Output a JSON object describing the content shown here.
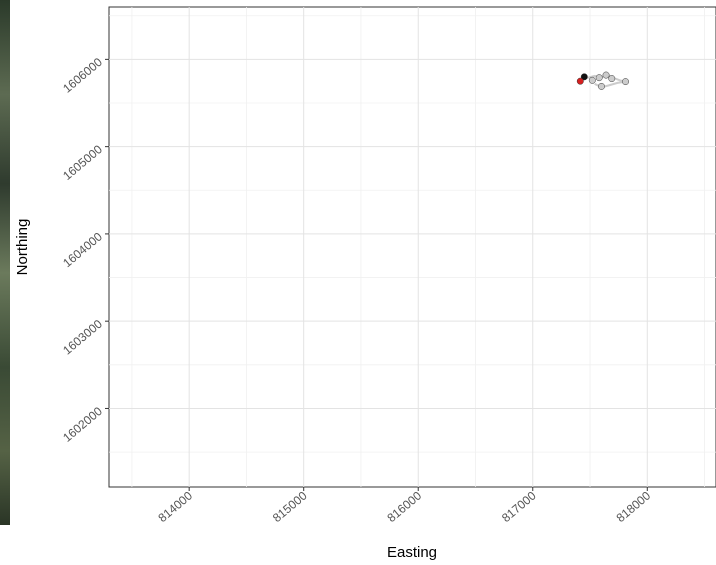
{
  "chart_data": {
    "type": "scatter",
    "title": "",
    "xlabel": "Easting",
    "ylabel": "Northing",
    "xlim": [
      813300,
      818600
    ],
    "ylim": [
      1601100,
      1606600
    ],
    "x_ticks": [
      814000,
      815000,
      816000,
      817000,
      818000
    ],
    "x_tick_labels": [
      "814000",
      "815000",
      "816000",
      "817000",
      "818000"
    ],
    "y_ticks": [
      1602000,
      1603000,
      1604000,
      1605000,
      1606000
    ],
    "y_tick_labels": [
      "1602000",
      "1603000",
      "1604000",
      "1605000",
      "1606000"
    ],
    "grid": true,
    "track": {
      "color": "#cccccc",
      "x": [
        817420,
        817480,
        817540,
        817600,
        817640,
        817700,
        817760,
        817810,
        817740,
        817660,
        817600,
        817540
      ],
      "y": [
        1605770,
        1605790,
        1605810,
        1605795,
        1605820,
        1605790,
        1605760,
        1605745,
        1605730,
        1605700,
        1605680,
        1605720
      ]
    },
    "points": [
      {
        "color": "#cccccc",
        "x": 817520,
        "y": 1605760
      },
      {
        "color": "#cccccc",
        "x": 817580,
        "y": 1605790
      },
      {
        "color": "#cccccc",
        "x": 817640,
        "y": 1605820
      },
      {
        "color": "#cccccc",
        "x": 817690,
        "y": 1605780
      },
      {
        "color": "#cccccc",
        "x": 817810,
        "y": 1605745
      },
      {
        "color": "#cccccc",
        "x": 817600,
        "y": 1605690
      },
      {
        "color": "#111111",
        "x": 817450,
        "y": 1605800
      },
      {
        "color": "#d62020",
        "x": 817415,
        "y": 1605750
      }
    ]
  }
}
